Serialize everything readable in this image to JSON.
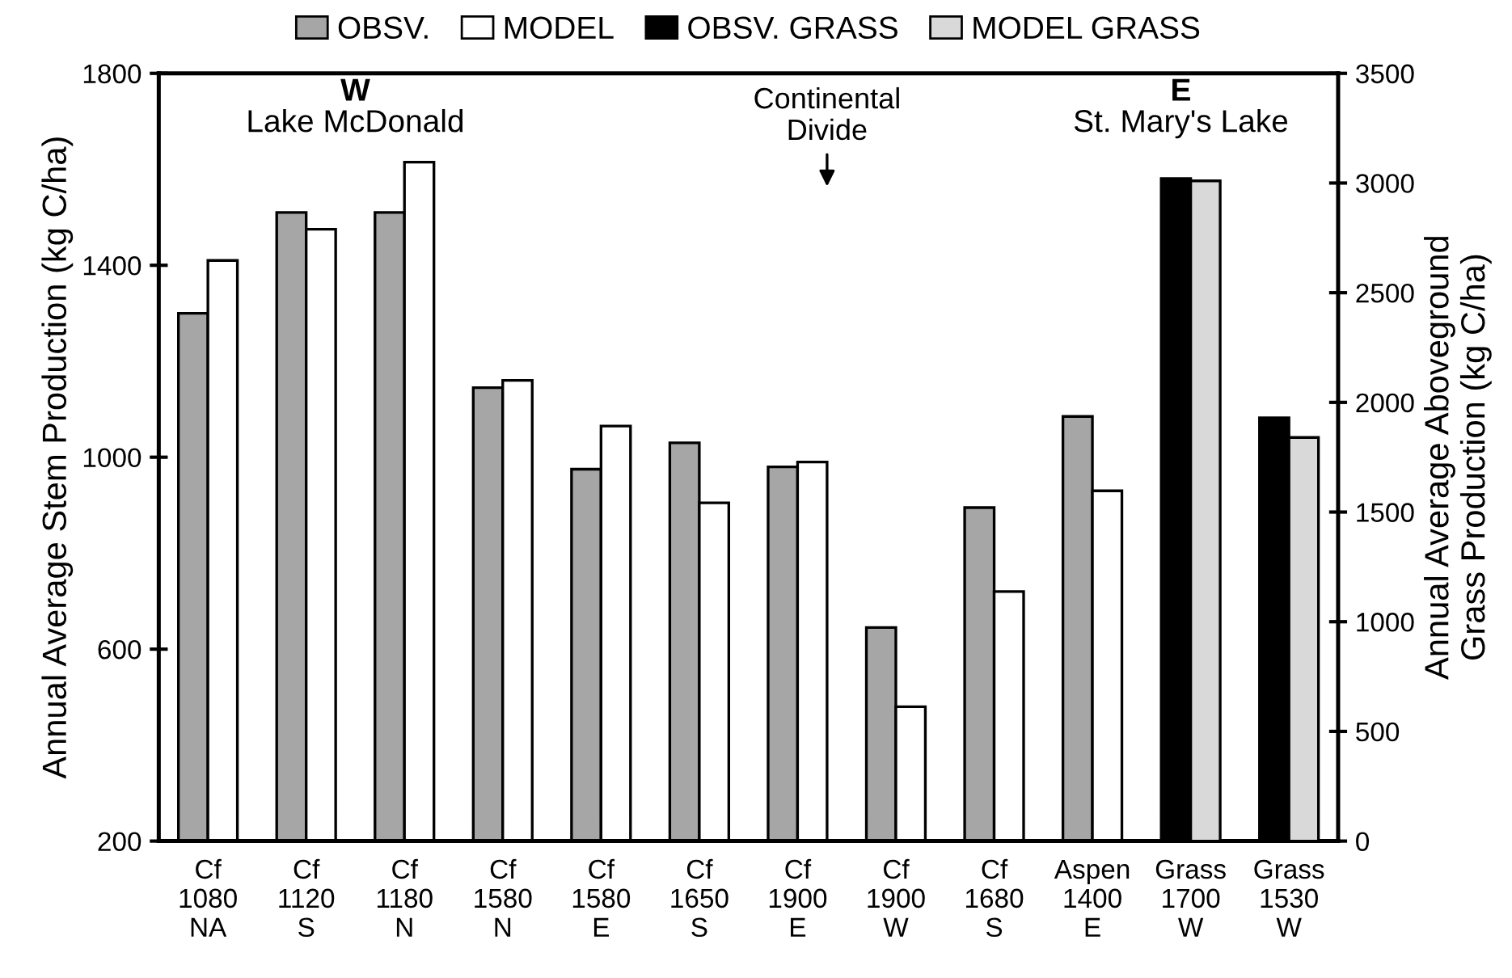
{
  "chart_data": {
    "type": "bar",
    "categories": [
      "Cf\n1080\nNA",
      "Cf\n1120\nS",
      "Cf\n1180\nN",
      "Cf\n1580\nN",
      "Cf\n1580\nE",
      "Cf\n1650\nS",
      "Cf\n1900\nE",
      "Cf\n1900\nW",
      "Cf\n1680\nS",
      "Aspen\n1400\nE",
      "Grass\n1700\nW",
      "Grass\n1530\nW"
    ],
    "series": [
      {
        "name": "OBSV.",
        "color": "#a6a6a6",
        "values": [
          1300,
          1510,
          1510,
          1145,
          975,
          1030,
          980,
          645,
          895,
          1085,
          null,
          null
        ]
      },
      {
        "name": "MODEL",
        "color": "#ffffff",
        "values": [
          1410,
          1475,
          1615,
          1160,
          1065,
          905,
          990,
          480,
          720,
          930,
          null,
          null
        ]
      },
      {
        "name": "OBSV. GRASS",
        "color": "#000000",
        "axis": "y2",
        "values": [
          null,
          null,
          null,
          null,
          null,
          null,
          null,
          null,
          null,
          null,
          3020,
          1930
        ]
      },
      {
        "name": "MODEL GRASS",
        "color": "#d9d9d9",
        "axis": "y2",
        "values": [
          null,
          null,
          null,
          null,
          null,
          null,
          null,
          null,
          null,
          null,
          3010,
          1840
        ]
      }
    ],
    "ylabel": "Annual Average Stem Production (kg C/ha)",
    "y2label": "Annual Average Aboveground\nGrass Production (kg C/ha)",
    "ylim": [
      200,
      1800
    ],
    "yticks": [
      200,
      600,
      1000,
      1400,
      1800
    ],
    "y2lim": [
      0,
      3500
    ],
    "y2ticks": [
      0,
      500,
      1000,
      1500,
      2000,
      2500,
      3000,
      3500
    ],
    "annotations": [
      "W",
      "Lake McDonald",
      "Continental\nDivide",
      "E",
      "St. Mary's Lake"
    ],
    "legend": "top",
    "grid": false
  }
}
